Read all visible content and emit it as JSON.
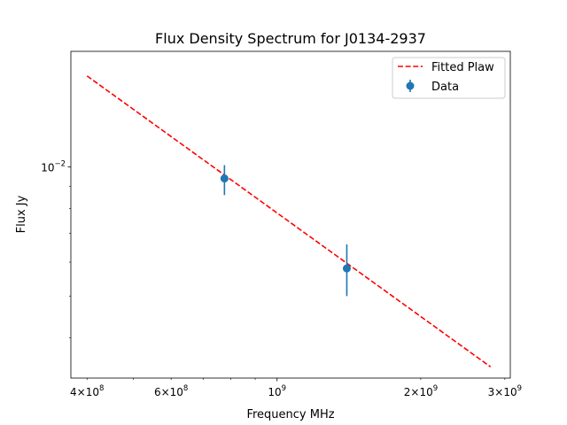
{
  "chart_data": {
    "type": "scatter",
    "title": "Flux Density Spectrum for J0134-2937",
    "xlabel": "Frequency MHz",
    "ylabel": "Flux Jy",
    "xscale": "log",
    "yscale": "log",
    "xlim": [
      370000000,
      3080000000
    ],
    "ylim": [
      0.00322,
      0.0186
    ],
    "x_major_ticks": [
      {
        "value": 1000000000,
        "base": "10",
        "exp": "9"
      }
    ],
    "x_minor_ticks": [
      {
        "value": 400000000,
        "mant": "4",
        "base": "10",
        "exp": "8"
      },
      {
        "value": 600000000,
        "mant": "6",
        "base": "10",
        "exp": "8"
      },
      {
        "value": 2000000000,
        "mant": "2",
        "base": "10",
        "exp": "9"
      },
      {
        "value": 3000000000,
        "mant": "3",
        "base": "10",
        "exp": "9"
      }
    ],
    "y_major_ticks": [
      {
        "value": 0.01,
        "base": "10",
        "exp": "−2"
      }
    ],
    "grid": false,
    "legend": "top-right",
    "series": [
      {
        "name": "Fitted Plaw",
        "kind": "line",
        "style": "dashed",
        "color": "#ff0000",
        "x": [
          400000000,
          2800000000
        ],
        "y": [
          0.0163,
          0.00342
        ]
      },
      {
        "name": "Data",
        "kind": "errorbar",
        "color": "#1f77b4",
        "points": [
          {
            "x": 776000000,
            "y": 0.0094,
            "yerr_low": 0.0008,
            "yerr_high": 0.0007
          },
          {
            "x": 1400000000,
            "y": 0.0058,
            "yerr_low": 0.0008,
            "yerr_high": 0.0008
          }
        ]
      }
    ]
  }
}
